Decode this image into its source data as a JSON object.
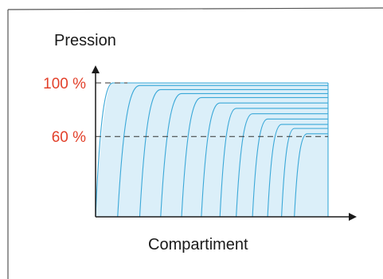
{
  "chart_data": {
    "type": "line",
    "title": "",
    "xlabel": "Compartiment",
    "ylabel": "Pression",
    "y_tick_labels": [
      "100 %",
      "60 %"
    ],
    "y_tick_values": [
      100,
      60
    ],
    "reference_lines": [
      100,
      60
    ],
    "ylim": [
      0,
      110
    ],
    "xlim": [
      0,
      1
    ],
    "series": [
      {
        "x": [
          0,
          0.075,
          1
        ],
        "y": [
          0,
          100,
          100
        ]
      },
      {
        "x": [
          0.095,
          0.19,
          1
        ],
        "y": [
          0,
          98,
          98
        ]
      },
      {
        "x": [
          0.19,
          0.28,
          1
        ],
        "y": [
          0,
          95,
          95
        ]
      },
      {
        "x": [
          0.28,
          0.37,
          1
        ],
        "y": [
          0,
          92,
          92
        ]
      },
      {
        "x": [
          0.37,
          0.455,
          1
        ],
        "y": [
          0,
          89,
          89
        ]
      },
      {
        "x": [
          0.455,
          0.535,
          1
        ],
        "y": [
          0,
          85,
          85
        ]
      },
      {
        "x": [
          0.535,
          0.605,
          1
        ],
        "y": [
          0,
          81,
          81
        ]
      },
      {
        "x": [
          0.605,
          0.675,
          1
        ],
        "y": [
          0,
          77,
          77
        ]
      },
      {
        "x": [
          0.675,
          0.74,
          1
        ],
        "y": [
          0,
          73,
          73
        ]
      },
      {
        "x": [
          0.74,
          0.8,
          1
        ],
        "y": [
          0,
          69,
          69
        ]
      },
      {
        "x": [
          0.8,
          0.855,
          1
        ],
        "y": [
          0,
          66,
          66
        ]
      },
      {
        "x": [
          0.855,
          0.91,
          1
        ],
        "y": [
          0,
          62,
          62
        ]
      }
    ],
    "grid": false,
    "colors": {
      "fill": "#dbeff9",
      "line": "#3aa8d8",
      "axis": "#1a1a1a",
      "tick_label": "#e2402a",
      "dashed": "#333333",
      "frame": "#555555"
    }
  }
}
